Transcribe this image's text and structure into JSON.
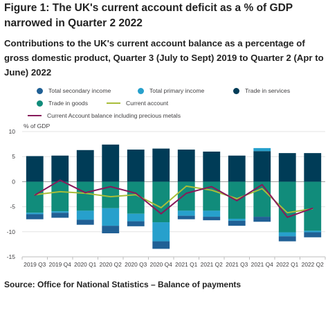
{
  "title": "Figure 1: The UK's current account deficit as a % of GDP narrowed in Quarter 2 2022",
  "subtitle": "Contributions to the UK's current account balance as a percentage of gross domestic product, Quarter 3 (July to Sept) 2019 to Quarter 2 (Apr to June) 2022",
  "source": "Source: Office for National Statistics – Balance of payments",
  "colors": {
    "secondary_income": "#206095",
    "primary_income": "#27a0cc",
    "services": "#003c57",
    "goods": "#118c7b",
    "current_account": "#a8bd3a",
    "ca_ex_metals": "#871a5b"
  },
  "chart_data": {
    "type": "bar",
    "stacked": true,
    "ylabel": "% of GDP",
    "ylim": [
      -15,
      10
    ],
    "yticks": [
      10,
      5,
      0,
      -5,
      -10,
      -15
    ],
    "grid": true,
    "legend_position": "top",
    "categories": [
      "2019 Q3",
      "2019 Q4",
      "2020 Q1",
      "2020 Q2",
      "2020 Q3",
      "2020 Q4",
      "2021 Q1",
      "2021 Q2",
      "2021 Q3",
      "2021 Q4",
      "2022 Q1",
      "2022 Q2"
    ],
    "series": [
      {
        "name": "Total secondary income",
        "type": "bar",
        "values": [
          -1.0,
          -1.0,
          -1.0,
          -1.5,
          -1.0,
          -1.5,
          -0.7,
          -0.7,
          -1.0,
          -1.0,
          -1.0,
          -1.0
        ]
      },
      {
        "name": "Total primary income",
        "type": "bar",
        "values": [
          -0.3,
          -0.3,
          -1.8,
          -3.5,
          -1.5,
          -3.8,
          -1.0,
          -1.2,
          -0.4,
          0.6,
          -0.8,
          -0.3
        ]
      },
      {
        "name": "Trade in services",
        "type": "bar",
        "values": [
          5.1,
          5.2,
          6.3,
          7.4,
          6.4,
          6.6,
          6.4,
          6.0,
          5.2,
          6.1,
          5.7,
          5.7
        ]
      },
      {
        "name": "Trade in goods",
        "type": "bar",
        "values": [
          -6.2,
          -5.9,
          -5.8,
          -5.3,
          -6.4,
          -8.1,
          -5.8,
          -5.8,
          -7.4,
          -7.0,
          -10.1,
          -9.8
        ]
      },
      {
        "name": "Current account",
        "type": "line",
        "values": [
          -2.6,
          -2.0,
          -2.3,
          -3.0,
          -2.6,
          -5.2,
          -0.9,
          -1.7,
          -3.4,
          -1.4,
          -6.2,
          -5.4
        ]
      },
      {
        "name": "Current Account balance including precious metals",
        "type": "line",
        "values": [
          -2.7,
          0.3,
          -2.2,
          -1.0,
          -2.3,
          -6.4,
          -2.3,
          -1.0,
          -3.8,
          -0.6,
          -7.1,
          -5.3
        ]
      }
    ]
  }
}
